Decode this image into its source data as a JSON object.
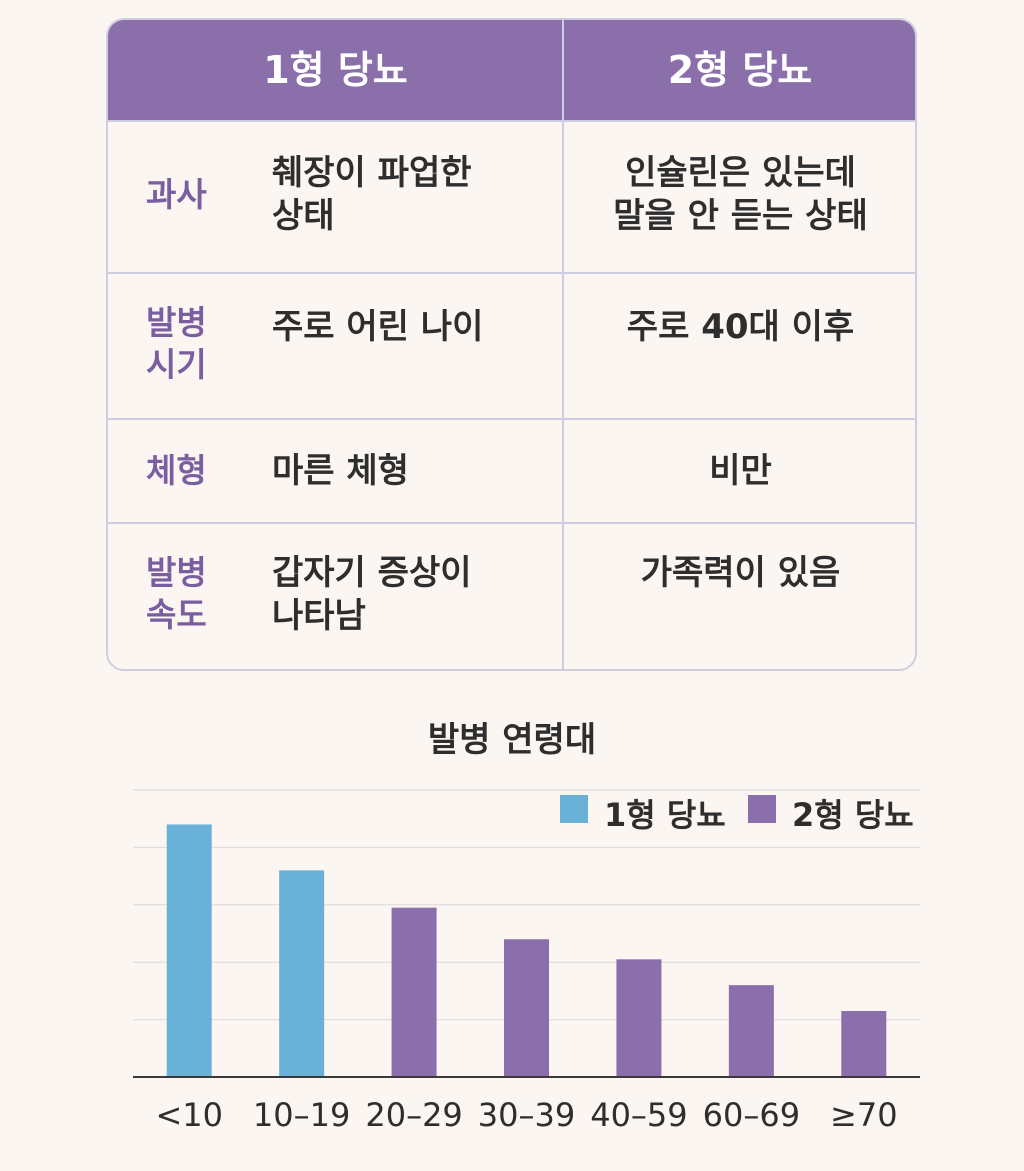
{
  "table": {
    "headers": [
      "1형 당뇨",
      "2형 당뇨"
    ],
    "rows": [
      {
        "label": "과사",
        "type1": "췌장이 파업한\n상태",
        "type2": "인슐린은 있는데\n말을 안 듣는 상태"
      },
      {
        "label": "발병\n시기",
        "type1": "주로 어린 나이",
        "type2": "주로 40대 이후"
      },
      {
        "label": "체형",
        "type1": "마른 체형",
        "type2": "비만"
      },
      {
        "label": "발병\n속도",
        "type1": "갑자기 증상이\n나타남",
        "type2": "가족력이 있음"
      }
    ]
  },
  "chart_data": {
    "type": "bar",
    "title": "발병 연령대",
    "categories": [
      "<10",
      "10–19",
      "20–29",
      "30–39",
      "40–59",
      "60–69",
      "≥70"
    ],
    "series": [
      {
        "name": "1형 당뇨",
        "color": "#6ab1d8",
        "values": [
          88,
          72,
          null,
          null,
          null,
          null,
          null
        ]
      },
      {
        "name": "2형 당뇨",
        "color": "#8a6fab",
        "values": [
          null,
          null,
          59,
          48,
          41,
          32,
          23
        ]
      }
    ],
    "ylim": [
      0,
      100
    ],
    "grid": true,
    "legend": "top-right"
  }
}
